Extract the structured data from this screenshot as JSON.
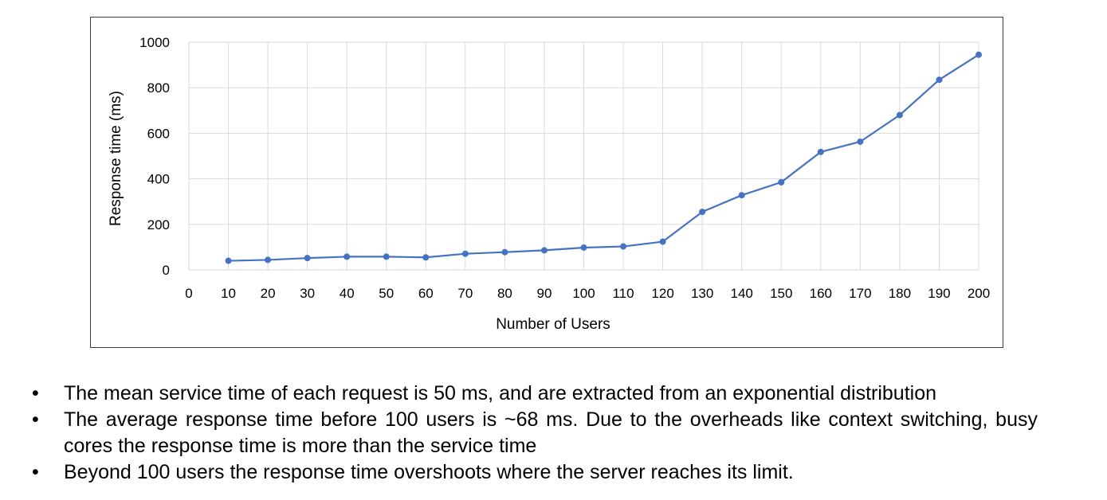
{
  "chart_data": {
    "type": "line",
    "title": "",
    "xlabel": "Number of Users",
    "ylabel": "Response time (ms)",
    "xlim": [
      0,
      200
    ],
    "ylim": [
      0,
      1000
    ],
    "x_ticks": [
      0,
      10,
      20,
      30,
      40,
      50,
      60,
      70,
      80,
      90,
      100,
      110,
      120,
      130,
      140,
      150,
      160,
      170,
      180,
      190,
      200
    ],
    "y_ticks": [
      0,
      200,
      400,
      600,
      800,
      1000
    ],
    "grid": true,
    "legend": "none",
    "colors": {
      "series": "#4472c4",
      "grid": "#d9d9d9",
      "frame": "#3a3a3a"
    },
    "series": [
      {
        "x": [
          10,
          20,
          30,
          40,
          50,
          60,
          70,
          80,
          90,
          100,
          110,
          120,
          130,
          140,
          150,
          160,
          170,
          180,
          190,
          200
        ],
        "values": [
          40,
          44,
          52,
          58,
          58,
          55,
          71,
          78,
          86,
          98,
          103,
          124,
          255,
          328,
          385,
          518,
          563,
          680,
          835,
          945
        ]
      }
    ]
  },
  "bullets": [
    "The mean service time of each request is 50 ms, and are extracted from an exponential distribution",
    "The average response time before 100 users is ~68 ms. Due to the overheads like context switching, busy cores the response time is more than the service time",
    "Beyond 100 users the response time overshoots where the server reaches its limit."
  ]
}
